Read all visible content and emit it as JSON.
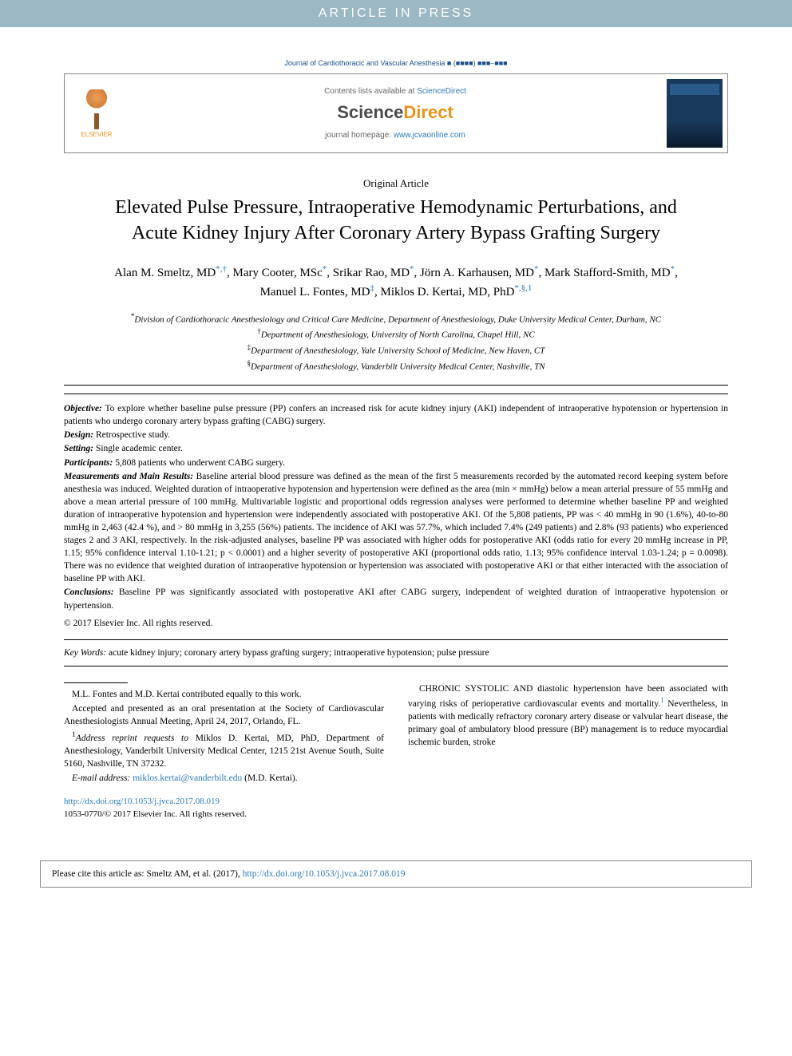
{
  "banner": {
    "text": "ARTICLE IN PRESS"
  },
  "journal_citation": "Journal of Cardiothoracic and Vascular Anesthesia ■ (■■■■) ■■■–■■■",
  "header": {
    "elsevier_label": "ELSEVIER",
    "contents_prefix": "Contents lists available at ",
    "contents_link": "ScienceDirect",
    "sciencedirect_logo": "ScienceDirect",
    "homepage_prefix": "journal homepage: ",
    "homepage_link": "www.jcvaonline.com"
  },
  "article_type": "Original Article",
  "title": "Elevated Pulse Pressure, Intraoperative Hemodynamic Perturbations, and Acute Kidney Injury After Coronary Artery Bypass Grafting Surgery",
  "authors_html": "Alan M. Smeltz, MD<sup>*,†</sup>, Mary Cooter, MSc<sup>*</sup>, Srikar Rao, MD<sup>*</sup>, Jörn A. Karhausen, MD<sup>*</sup>, Mark Stafford-Smith, MD<sup>*</sup>, Manuel L. Fontes, MD<sup>‡</sup>, Miklos D. Kertai, MD, PhD<sup>*,§,1</sup>",
  "affiliations": {
    "a1": {
      "sym": "*",
      "text": "Division of Cardiothoracic Anesthesiology and Critical Care Medicine, Department of Anesthesiology, Duke University Medical Center, Durham, NC"
    },
    "a2": {
      "sym": "†",
      "text": "Department of Anesthesiology, University of North Carolina, Chapel Hill, NC"
    },
    "a3": {
      "sym": "‡",
      "text": "Department of Anesthesiology, Yale University School of Medicine, New Haven, CT"
    },
    "a4": {
      "sym": "§",
      "text": "Department of Anesthesiology, Vanderbilt University Medical Center, Nashville, TN"
    }
  },
  "abstract": {
    "objective_label": "Objective:",
    "objective": "To explore whether baseline pulse pressure (PP) confers an increased risk for acute kidney injury (AKI) independent of intraoperative hypotension or hypertension in patients who undergo coronary artery bypass grafting (CABG) surgery.",
    "design_label": "Design:",
    "design": "Retrospective study.",
    "setting_label": "Setting:",
    "setting": "Single academic center.",
    "participants_label": "Participants:",
    "participants": "5,808 patients who underwent CABG surgery.",
    "results_label": "Measurements and Main Results:",
    "results": "Baseline arterial blood pressure was defined as the mean of the first 5 measurements recorded by the automated record keeping system before anesthesia was induced. Weighted duration of intraoperative hypotension and hypertension were defined as the area (min × mmHg) below a mean arterial pressure of 55 mmHg and above a mean arterial pressure of 100 mmHg. Multivariable logistic and proportional odds regression analyses were performed to determine whether baseline PP and weighted duration of intraoperative hypotension and hypertension were independently associated with postoperative AKI. Of the 5,808 patients, PP was < 40 mmHg in 90 (1.6%), 40-to-80 mmHg in 2,463 (42.4 %), and > 80 mmHg in 3,255 (56%) patients. The incidence of AKI was 57.7%, which included 7.4% (249 patients) and 2.8% (93 patients) who experienced stages 2 and 3 AKI, respectively. In the risk-adjusted analyses, baseline PP was associated with higher odds for postoperative AKI (odds ratio for every 20 mmHg increase in PP, 1.15; 95% confidence interval 1.10-1.21; p < 0.0001) and a higher severity of postoperative AKI (proportional odds ratio, 1.13; 95% confidence interval 1.03-1.24; p = 0.0098). There was no evidence that weighted duration of intraoperative hypotension or hypertension was associated with postoperative AKI or that either interacted with the association of baseline PP with AKI.",
    "conclusions_label": "Conclusions:",
    "conclusions": "Baseline PP was significantly associated with postoperative AKI after CABG surgery, independent of weighted duration of intraoperative hypotension or hypertension.",
    "copyright": "© 2017 Elsevier Inc. All rights reserved."
  },
  "keywords_label": "Key Words:",
  "keywords": "acute kidney injury; coronary artery bypass grafting surgery; intraoperative hypotension; pulse pressure",
  "footnotes": {
    "f1": "M.L. Fontes and M.D. Kertai contributed equally to this work.",
    "f2": "Accepted and presented as an oral presentation at the Society of Cardiovascular Anesthesiologists Annual Meeting, April 24, 2017, Orlando, FL.",
    "f3_label": "1",
    "f3_prefix": "Address reprint requests to",
    "f3": " Miklos D. Kertai, MD, PhD, Department of Anesthesiology, Vanderbilt University Medical Center, 1215 21st Avenue South, Suite 5160, Nashville, TN 37232.",
    "email_label": "E-mail address:",
    "email": "miklos.kertai@vanderbilt.edu",
    "email_suffix": " (M.D. Kertai)."
  },
  "doi": {
    "url": "http://dx.doi.org/10.1053/j.jvca.2017.08.019",
    "issn": "1053-0770/© 2017 Elsevier Inc. All rights reserved."
  },
  "body_paragraph": "CHRONIC SYSTOLIC AND diastolic hypertension have been associated with varying risks of perioperative cardiovascular events and mortality.¹ Nevertheless, in patients with medically refractory coronary artery disease or valvular heart disease, the primary goal of ambulatory blood pressure (BP) management is to reduce myocardial ischemic burden, stroke",
  "cite_box": {
    "prefix": "Please cite this article as: Smeltz AM, et al. (2017), ",
    "link": "http://dx.doi.org/10.1053/j.jvca.2017.08.019"
  },
  "colors": {
    "banner_bg": "#9bb8c4",
    "banner_fg": "#ffffff",
    "link": "#2a7ab8",
    "elsevier_orange": "#e8941a",
    "text": "#000000",
    "border": "#888888"
  }
}
